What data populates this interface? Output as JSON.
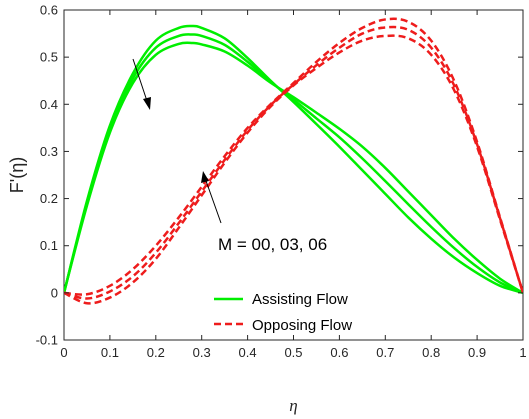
{
  "chart_data": {
    "type": "line",
    "xlabel": "η",
    "ylabel": "F'(η)",
    "xlim": [
      0,
      1
    ],
    "ylim": [
      -0.1,
      0.6
    ],
    "xticks": [
      "0",
      "0.1",
      "0.2",
      "0.3",
      "0.4",
      "0.5",
      "0.6",
      "0.7",
      "0.8",
      "0.9",
      "1"
    ],
    "yticks": [
      "-0.1",
      "0",
      "0.1",
      "0.2",
      "0.3",
      "0.4",
      "0.5",
      "0.6"
    ],
    "grid": false,
    "legend_position": "bottom-center",
    "legend": [
      {
        "label": "Assisting Flow",
        "color": "#00ee00",
        "style": "solid"
      },
      {
        "label": "Opposing Flow",
        "color": "#ee1c1c",
        "style": "dashed"
      }
    ],
    "annotation": "M = 00, 03, 06",
    "series": [
      {
        "group": "assisting",
        "M": "00",
        "color": "#00ee00",
        "style": "solid",
        "x": [
          0,
          0.05,
          0.1,
          0.15,
          0.2,
          0.25,
          0.28,
          0.3,
          0.35,
          0.4,
          0.45,
          0.5,
          0.55,
          0.6,
          0.65,
          0.7,
          0.75,
          0.8,
          0.85,
          0.9,
          0.95,
          1
        ],
        "y": [
          0,
          0.195,
          0.355,
          0.465,
          0.535,
          0.562,
          0.566,
          0.562,
          0.54,
          0.498,
          0.45,
          0.405,
          0.358,
          0.31,
          0.26,
          0.21,
          0.16,
          0.115,
          0.075,
          0.042,
          0.015,
          0
        ]
      },
      {
        "group": "assisting",
        "M": "03",
        "color": "#00ee00",
        "style": "solid",
        "x": [
          0,
          0.05,
          0.1,
          0.15,
          0.2,
          0.25,
          0.28,
          0.3,
          0.35,
          0.4,
          0.45,
          0.5,
          0.55,
          0.6,
          0.65,
          0.7,
          0.75,
          0.8,
          0.85,
          0.9,
          0.95,
          1
        ],
        "y": [
          0,
          0.19,
          0.348,
          0.455,
          0.52,
          0.545,
          0.548,
          0.545,
          0.526,
          0.49,
          0.448,
          0.41,
          0.37,
          0.33,
          0.285,
          0.237,
          0.188,
          0.14,
          0.095,
          0.055,
          0.022,
          0
        ]
      },
      {
        "group": "assisting",
        "M": "06",
        "color": "#00ee00",
        "style": "solid",
        "x": [
          0,
          0.05,
          0.1,
          0.15,
          0.2,
          0.25,
          0.28,
          0.3,
          0.35,
          0.4,
          0.45,
          0.5,
          0.55,
          0.6,
          0.65,
          0.7,
          0.75,
          0.8,
          0.85,
          0.9,
          0.95,
          1
        ],
        "y": [
          0,
          0.185,
          0.34,
          0.445,
          0.505,
          0.528,
          0.53,
          0.527,
          0.512,
          0.482,
          0.446,
          0.415,
          0.382,
          0.348,
          0.31,
          0.265,
          0.215,
          0.165,
          0.115,
          0.07,
          0.03,
          0
        ]
      },
      {
        "group": "opposing",
        "M": "00",
        "color": "#ee1c1c",
        "style": "dashed",
        "x": [
          0,
          0.05,
          0.1,
          0.15,
          0.2,
          0.25,
          0.3,
          0.35,
          0.4,
          0.45,
          0.5,
          0.55,
          0.6,
          0.65,
          0.7,
          0.75,
          0.8,
          0.85,
          0.9,
          0.95,
          1
        ],
        "y": [
          0,
          -0.003,
          0.015,
          0.05,
          0.1,
          0.16,
          0.225,
          0.29,
          0.35,
          0.4,
          0.445,
          0.49,
          0.53,
          0.562,
          0.58,
          0.575,
          0.535,
          0.45,
          0.32,
          0.16,
          0
        ]
      },
      {
        "group": "opposing",
        "M": "03",
        "color": "#ee1c1c",
        "style": "dashed",
        "x": [
          0,
          0.05,
          0.1,
          0.15,
          0.2,
          0.25,
          0.3,
          0.35,
          0.4,
          0.45,
          0.5,
          0.55,
          0.6,
          0.65,
          0.7,
          0.75,
          0.8,
          0.85,
          0.9,
          0.95,
          1
        ],
        "y": [
          0,
          -0.012,
          0.003,
          0.035,
          0.085,
          0.148,
          0.215,
          0.282,
          0.345,
          0.398,
          0.442,
          0.483,
          0.52,
          0.55,
          0.563,
          0.558,
          0.52,
          0.44,
          0.315,
          0.158,
          0
        ]
      },
      {
        "group": "opposing",
        "M": "06",
        "color": "#ee1c1c",
        "style": "dashed",
        "x": [
          0,
          0.05,
          0.1,
          0.15,
          0.2,
          0.25,
          0.3,
          0.35,
          0.4,
          0.45,
          0.5,
          0.55,
          0.6,
          0.65,
          0.7,
          0.75,
          0.8,
          0.85,
          0.9,
          0.95,
          1
        ],
        "y": [
          0,
          -0.022,
          -0.01,
          0.022,
          0.072,
          0.138,
          0.207,
          0.276,
          0.34,
          0.395,
          0.44,
          0.477,
          0.51,
          0.535,
          0.545,
          0.54,
          0.505,
          0.43,
          0.31,
          0.155,
          0
        ]
      }
    ]
  }
}
